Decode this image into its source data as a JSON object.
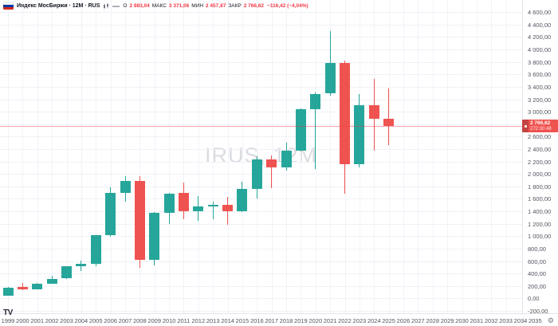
{
  "header": {
    "title": "Индекс МосБиржи · 12М · RUS",
    "ohlc": {
      "o_label": "О",
      "o": "2 883,04",
      "h_label": "МАКС",
      "h": "3 371,06",
      "l_label": "МИН",
      "l": "2 457,87",
      "c_label": "ЗАКР",
      "c": "2 766,62",
      "change": "−116,42 (−4,04%)"
    },
    "value_color": "#f23645"
  },
  "watermark": "IRUS, 12M",
  "tv_logo": "TV",
  "icons": {
    "gear": "⚙"
  },
  "chart_data": {
    "type": "candlestick",
    "title": "IRUS, 12M",
    "up_color": "#26a69a",
    "down_color": "#ef5350",
    "grid": true,
    "legend_position": "top-left",
    "y_axis": {
      "range_top": 4794,
      "range_bottom": -238,
      "tick_step": 200,
      "tick_values": [
        4600,
        4400,
        4200,
        4000,
        3800,
        3600,
        3400,
        3200,
        3000,
        2800,
        2600,
        2400,
        2200,
        2000,
        1800,
        1600,
        1400,
        1200,
        1000,
        800,
        600,
        400,
        200,
        0,
        -200
      ],
      "tick_labels": [
        "4 600,00",
        "4 400,00",
        "4 200,00",
        "4 000,00",
        "3 800,00",
        "3 600,00",
        "3 400,00",
        "3 200,00",
        "3 000,00",
        "2 800,00",
        "2 600,00",
        "2 400,00",
        "2 200,00",
        "2 000,00",
        "1 800,00",
        "1 600,00",
        "1 400,00",
        "1 200,00",
        "1 000,00",
        "800,00",
        "600,00",
        "400,00",
        "200,00",
        "0,00",
        "-200,00"
      ]
    },
    "x_axis": {
      "years": [
        "1999",
        "2000",
        "2001",
        "2002",
        "2003",
        "2004",
        "2005",
        "2006",
        "2007",
        "2008",
        "2009",
        "2010",
        "2011",
        "2012",
        "2013",
        "2014",
        "2015",
        "2016",
        "2017",
        "2018",
        "2019",
        "2020",
        "2021",
        "2022",
        "2023",
        "2024",
        "2025",
        "2026",
        "2027",
        "2028",
        "2029",
        "2030",
        "2031",
        "2032",
        "2033",
        "2034",
        "2035"
      ]
    },
    "candles": [
      [
        1999,
        45,
        190,
        43,
        177
      ],
      [
        2000,
        179,
        248,
        132,
        145
      ],
      [
        2001,
        145,
        243,
        141,
        237
      ],
      [
        2002,
        238,
        363,
        231,
        319
      ],
      [
        2003,
        319,
        518,
        313,
        514
      ],
      [
        2004,
        515,
        612,
        434,
        552
      ],
      [
        2005,
        553,
        1018,
        515,
        1011
      ],
      [
        2006,
        1011,
        1785,
        995,
        1693
      ],
      [
        2007,
        1693,
        1970,
        1554,
        1889
      ],
      [
        2008,
        1889,
        1966,
        493,
        620
      ],
      [
        2009,
        621,
        1389,
        533,
        1370
      ],
      [
        2010,
        1372,
        1695,
        1194,
        1688
      ],
      [
        2011,
        1690,
        1865,
        1267,
        1402
      ],
      [
        2012,
        1403,
        1640,
        1241,
        1475
      ],
      [
        2013,
        1480,
        1560,
        1271,
        1504
      ],
      [
        2014,
        1504,
        1632,
        1182,
        1397
      ],
      [
        2015,
        1400,
        1874,
        1393,
        1761
      ],
      [
        2016,
        1764,
        2285,
        1600,
        2233
      ],
      [
        2017,
        2233,
        2293,
        1775,
        2110
      ],
      [
        2018,
        2110,
        2502,
        2055,
        2369
      ],
      [
        2019,
        2369,
        3053,
        2357,
        3046
      ],
      [
        2020,
        3046,
        3308,
        2074,
        3289
      ],
      [
        2021,
        3289,
        4292,
        3260,
        3787
      ],
      [
        2022,
        3787,
        3820,
        1681,
        2154
      ],
      [
        2023,
        2154,
        3287,
        2105,
        3099
      ],
      [
        2024,
        3099,
        3521,
        2370,
        2883
      ],
      [
        2025,
        2883.04,
        3371.06,
        2457.87,
        2766.62
      ]
    ],
    "last_price": 2766.62,
    "last_price_label": "2 766,62",
    "countdown": "272:30:48"
  }
}
